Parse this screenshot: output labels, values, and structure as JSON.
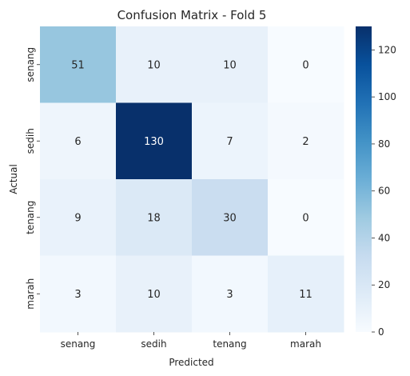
{
  "chart_data": {
    "type": "heatmap",
    "title": "Confusion Matrix - Fold 5",
    "xlabel": "Predicted",
    "ylabel": "Actual",
    "x_categories": [
      "senang",
      "sedih",
      "tenang",
      "marah"
    ],
    "y_categories": [
      "senang",
      "sedih",
      "tenang",
      "marah"
    ],
    "values": [
      [
        51,
        10,
        10,
        0
      ],
      [
        6,
        130,
        7,
        2
      ],
      [
        9,
        18,
        30,
        0
      ],
      [
        3,
        10,
        3,
        11
      ]
    ],
    "colormap": "Blues",
    "color_range": [
      0,
      130
    ],
    "colorbar_ticks": [
      0,
      20,
      40,
      60,
      80,
      100,
      120
    ],
    "light_text_color": "#ffffff",
    "dark_text_color": "#262626"
  }
}
